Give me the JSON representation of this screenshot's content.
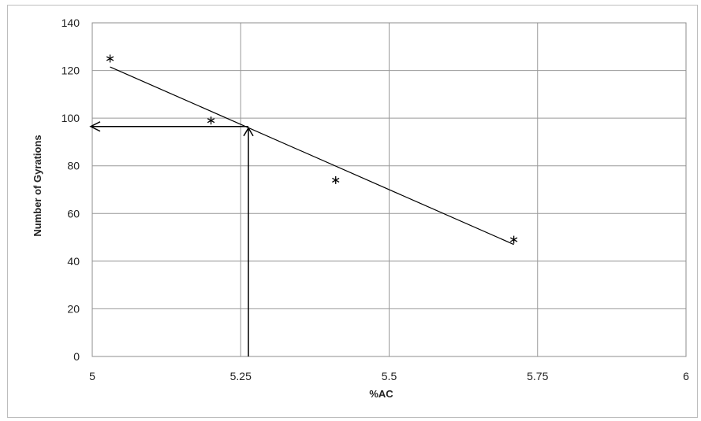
{
  "chart_data": {
    "type": "scatter",
    "title": "",
    "xlabel": "%AC",
    "ylabel": "Number of Gyrations",
    "xlim": [
      5,
      6
    ],
    "ylim": [
      0,
      140
    ],
    "x_ticks": [
      5,
      5.25,
      5.5,
      5.75,
      6
    ],
    "x_tick_labels": [
      "5",
      "5.25",
      "5.5",
      "5.75",
      "6"
    ],
    "y_ticks": [
      0,
      20,
      40,
      60,
      80,
      100,
      120,
      140
    ],
    "y_tick_labels": [
      "0",
      "20",
      "40",
      "60",
      "80",
      "100",
      "120",
      "140"
    ],
    "grid": true,
    "marker": "asterisk",
    "series": [
      {
        "points": [
          {
            "x": 5.03,
            "y": 125
          },
          {
            "x": 5.2,
            "y": 99
          },
          {
            "x": 5.41,
            "y": 74
          },
          {
            "x": 5.71,
            "y": 49
          }
        ]
      }
    ],
    "trendline": {
      "x": [
        5.03,
        5.71
      ],
      "y": [
        121.5,
        47
      ]
    },
    "annotation": {
      "x": 5.263,
      "y": 96.5
    },
    "colors": {
      "line": "#000000",
      "grid": "#999999",
      "marker": "#000000"
    }
  }
}
